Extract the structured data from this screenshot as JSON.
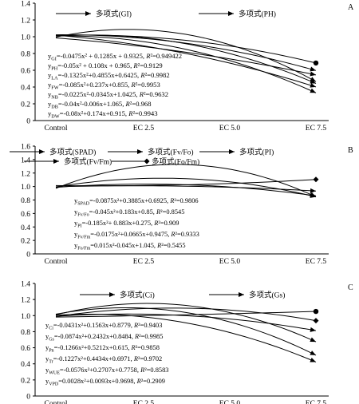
{
  "chart_data": [
    {
      "type": "line",
      "panel_label": "A",
      "categories": [
        "Control",
        "EC 2.5",
        "EC 5.0",
        "EC 7.5"
      ],
      "y_ticks": [
        "0",
        "0.2",
        "0.4",
        "0.6",
        "0.8",
        "1.0",
        "1.2",
        "1.4"
      ],
      "ylim": [
        0,
        1.4
      ],
      "legend": [
        "多项式(GI)",
        "多项式(PH)"
      ],
      "equations": [
        {
          "sub": "GI",
          "formula": "=-0.0475x² + 0.1285x + 0.9325",
          "r2": "=0.949422"
        },
        {
          "sub": "PH",
          "formula": "=-0.05x² + 0.108x + 0.965",
          "r2": "=0.9129"
        },
        {
          "sub": "LA",
          "formula": "=-0.1325x²+0.4855x+0.6425",
          "r2": "=0.9982"
        },
        {
          "sub": "FW",
          "formula": "=-0.085x²+0.237x+0.855",
          "r2": "=0.9953"
        },
        {
          "sub": "NB",
          "formula": "=-0.0225x²-0.0345x+1.0425",
          "r2": "=0.9632"
        },
        {
          "sub": "DB",
          "formula": "=-0.04x²-0.006x+1.065",
          "r2": "=0.968"
        },
        {
          "sub": "DW",
          "formula": "=-0.08x²+0.174x+0.915",
          "r2": "=0.9943"
        }
      ],
      "series": [
        {
          "coef": [
            -0.0475,
            0.1285,
            0.9325
          ],
          "end_marker": "circle"
        },
        {
          "coef": [
            -0.05,
            0.108,
            0.965
          ],
          "end_marker": "arrow"
        },
        {
          "coef": [
            -0.1325,
            0.4855,
            0.6425
          ],
          "end_marker": "arrow"
        },
        {
          "coef": [
            -0.085,
            0.237,
            0.855
          ],
          "end_marker": "arrow"
        },
        {
          "coef": [
            -0.0225,
            -0.0345,
            1.0425
          ],
          "end_marker": "arrow"
        },
        {
          "coef": [
            -0.04,
            -0.006,
            1.065
          ],
          "end_marker": "arrow"
        },
        {
          "coef": [
            -0.08,
            0.174,
            0.915
          ],
          "end_marker": "arrow"
        }
      ]
    },
    {
      "type": "line",
      "panel_label": "B",
      "categories": [
        "Control",
        "EC 2.5",
        "EC 5.0",
        "EC 7.5"
      ],
      "y_ticks": [
        "0",
        "0.2",
        "0.4",
        "0.6",
        "0.8",
        "1.0",
        "1.2",
        "1.4",
        "1.6"
      ],
      "ylim": [
        0,
        1.6
      ],
      "legend": [
        "多项式(SPAD)",
        "多项式(Fv/Fo)",
        "多项式(PI)",
        "多项式(Fv/Fm)",
        "多项式(Fo/Fm)"
      ],
      "equations": [
        {
          "sub": "SPAD",
          "formula": "=-0.0875x²+0.3885x+0.6925",
          "r2": "=0.9806"
        },
        {
          "sub": "Fv/Fo",
          "formula": "=-0.045x²+0.183x+0.85",
          "r2": "=0.8545"
        },
        {
          "sub": "PI",
          "formula": "=-0.185x²+ 0.883x+0.275",
          "r2": "=0.909"
        },
        {
          "sub": "Fv/Fm",
          "formula": "=-0.0175x²+0.0665x+0.9475",
          "r2": "=0.9333"
        },
        {
          "sub": "Fo/Fm",
          "formula": "=0.015x²-0.045x+1.045",
          "r2": "=0.5455"
        }
      ],
      "series": [
        {
          "coef": [
            -0.0875,
            0.3885,
            0.6925
          ],
          "end_marker": "arrow"
        },
        {
          "coef": [
            -0.045,
            0.183,
            0.85
          ],
          "end_marker": "arrow"
        },
        {
          "coef": [
            -0.185,
            0.883,
            0.275
          ],
          "end_marker": "arrow"
        },
        {
          "coef": [
            -0.0175,
            0.0665,
            0.9475
          ],
          "end_marker": "arrow"
        },
        {
          "coef": [
            0.015,
            -0.045,
            1.045
          ],
          "end_marker": "diamond"
        }
      ]
    },
    {
      "type": "line",
      "panel_label": "C",
      "categories": [
        "Control",
        "EC 2.5",
        "EC 5.0",
        "EC 7.5"
      ],
      "y_ticks": [
        "0",
        "0.2",
        "0.4",
        "0.6",
        "0.8",
        "1.0",
        "1.2",
        "1.4"
      ],
      "ylim": [
        0,
        1.4
      ],
      "legend": [
        "多项式(Ci)",
        "多项式(Gs)"
      ],
      "equations": [
        {
          "sub": "Ci",
          "formula": "=-0.0431x²+0.1563x+0.8779",
          "r2": "=0.9403"
        },
        {
          "sub": "Gs",
          "formula": "=-0.0874x²+0.2432x+0.8484",
          "r2": "=0.9985"
        },
        {
          "sub": "Pn",
          "formula": "=-0.1266x²+0.5212x+0.615",
          "r2": "=0.9858"
        },
        {
          "sub": "Tr",
          "formula": "=-0.1227x²+0.4434x+0.6971",
          "r2": "=0.9702"
        },
        {
          "sub": "WUE",
          "formula": "=-0.0576x²+0.2707x+0.7758",
          "r2": "=0.8583"
        },
        {
          "sub": "VPD",
          "formula": "=0.0028x²+0.0093x+0.9698",
          "r2": "=0.2909"
        }
      ],
      "series": [
        {
          "coef": [
            -0.0431,
            0.1563,
            0.8779
          ],
          "end_marker": "arrow"
        },
        {
          "coef": [
            -0.0874,
            0.2432,
            0.8484
          ],
          "end_marker": "arrow"
        },
        {
          "coef": [
            -0.1266,
            0.5212,
            0.615
          ],
          "end_marker": "arrow"
        },
        {
          "coef": [
            -0.1227,
            0.4434,
            0.6971
          ],
          "end_marker": "arrow"
        },
        {
          "coef": [
            -0.0576,
            0.2707,
            0.7758
          ],
          "end_marker": "diamond"
        },
        {
          "coef": [
            0.0028,
            0.0093,
            0.9698
          ],
          "end_marker": "circle"
        }
      ]
    }
  ]
}
